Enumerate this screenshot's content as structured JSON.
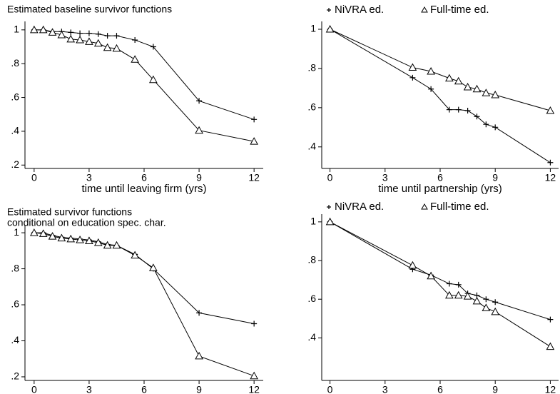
{
  "chart_data": [
    {
      "type": "line",
      "title": [
        "Estimated baseline survivor functions"
      ],
      "xlabel": "time until leaving firm (yrs)",
      "x": [
        0,
        0.5,
        1,
        1.5,
        2,
        2.5,
        3,
        3.5,
        4,
        4.5,
        5.5,
        6.5,
        9,
        12
      ],
      "series": [
        {
          "marker": "plus",
          "color": "#000000",
          "values": [
            1.0,
            1.0,
            0.99,
            0.99,
            0.985,
            0.98,
            0.98,
            0.975,
            0.965,
            0.965,
            0.94,
            0.9,
            0.58,
            0.47
          ]
        },
        {
          "marker": "triangle",
          "color": "#000000",
          "values": [
            1.0,
            1.0,
            0.985,
            0.97,
            0.945,
            0.94,
            0.93,
            0.92,
            0.895,
            0.89,
            0.825,
            0.705,
            0.405,
            0.34
          ]
        }
      ],
      "xlim": [
        -0.5,
        12.5
      ],
      "ylim": [
        0.18,
        1.05
      ],
      "xticks": [
        0,
        3,
        6,
        9,
        12
      ],
      "yticks": [
        {
          "value": 0.2,
          "label": ".2"
        },
        {
          "value": 0.4,
          "label": ".4"
        },
        {
          "value": 0.6,
          "label": ".6"
        },
        {
          "value": 0.8,
          "label": ".8"
        },
        1
      ]
    },
    {
      "type": "line",
      "xlabel": "time until partnership (yrs)",
      "legend": "top",
      "x": [
        0,
        4.5,
        5.5,
        6.5,
        7,
        7.5,
        8,
        8.5,
        9,
        12
      ],
      "series": [
        {
          "name": "NiVRA ed.",
          "marker": "plus",
          "color": "#000000",
          "values": [
            1.0,
            0.753,
            0.695,
            0.59,
            0.59,
            0.585,
            0.555,
            0.515,
            0.5,
            0.32
          ]
        },
        {
          "name": "Full-time ed.",
          "marker": "triangle",
          "color": "#000000",
          "values": [
            1.0,
            0.805,
            0.785,
            0.75,
            0.735,
            0.705,
            0.695,
            0.675,
            0.665,
            0.585
          ]
        }
      ],
      "xlim": [
        -0.45,
        12.45
      ],
      "ylim": [
        0.29,
        1.04
      ],
      "xticks": [
        0,
        3,
        6,
        9,
        12
      ],
      "yticks": [
        {
          "value": 0.4,
          "label": ".4"
        },
        {
          "value": 0.6,
          "label": ".6"
        },
        {
          "value": 0.8,
          "label": ".8"
        },
        1
      ]
    },
    {
      "type": "line",
      "title": [
        "Estimated survivor functions",
        "conditional on education spec. char."
      ],
      "xlabel": "time until leaving firm (yrs)",
      "x": [
        0,
        0.5,
        1,
        1.5,
        2,
        2.5,
        3,
        3.5,
        4,
        4.5,
        5.5,
        6.5,
        9,
        12
      ],
      "series": [
        {
          "marker": "plus",
          "color": "#000000",
          "values": [
            1.0,
            1.0,
            0.985,
            0.975,
            0.97,
            0.965,
            0.96,
            0.95,
            0.935,
            0.93,
            0.88,
            0.8,
            0.555,
            0.495
          ]
        },
        {
          "marker": "triangle",
          "color": "#000000",
          "values": [
            1.0,
            0.995,
            0.98,
            0.97,
            0.965,
            0.96,
            0.955,
            0.945,
            0.93,
            0.93,
            0.875,
            0.805,
            0.315,
            0.205
          ]
        }
      ],
      "xlim": [
        -0.5,
        12.5
      ],
      "ylim": [
        0.18,
        1.04
      ],
      "xticks": [
        0,
        3,
        6,
        9,
        12
      ],
      "yticks": [
        {
          "value": 0.2,
          "label": ".2"
        },
        {
          "value": 0.4,
          "label": ".4"
        },
        {
          "value": 0.6,
          "label": ".6"
        },
        {
          "value": 0.8,
          "label": ".8"
        },
        1
      ]
    },
    {
      "type": "line",
      "xlabel": "time until partnership (yrs)",
      "legend": "top",
      "x": [
        0,
        4.5,
        5.5,
        6.5,
        7,
        7.5,
        8,
        8.5,
        9,
        12
      ],
      "series": [
        {
          "name": "NiVRA ed.",
          "marker": "plus",
          "color": "#000000",
          "values": [
            1.0,
            0.755,
            0.725,
            0.68,
            0.675,
            0.63,
            0.62,
            0.6,
            0.585,
            0.495
          ]
        },
        {
          "name": "Full-time ed.",
          "marker": "triangle",
          "color": "#000000",
          "values": [
            1.0,
            0.775,
            0.72,
            0.62,
            0.62,
            0.615,
            0.59,
            0.555,
            0.535,
            0.355
          ]
        }
      ],
      "xlim": [
        -0.45,
        12.45
      ],
      "ylim": [
        0.18,
        1.04
      ],
      "xticks": [
        0,
        3,
        6,
        9,
        12
      ],
      "yticks": [
        {
          "value": 0.4,
          "label": ".4"
        },
        {
          "value": 0.6,
          "label": ".6"
        },
        {
          "value": 0.8,
          "label": ".8"
        },
        1
      ]
    }
  ]
}
